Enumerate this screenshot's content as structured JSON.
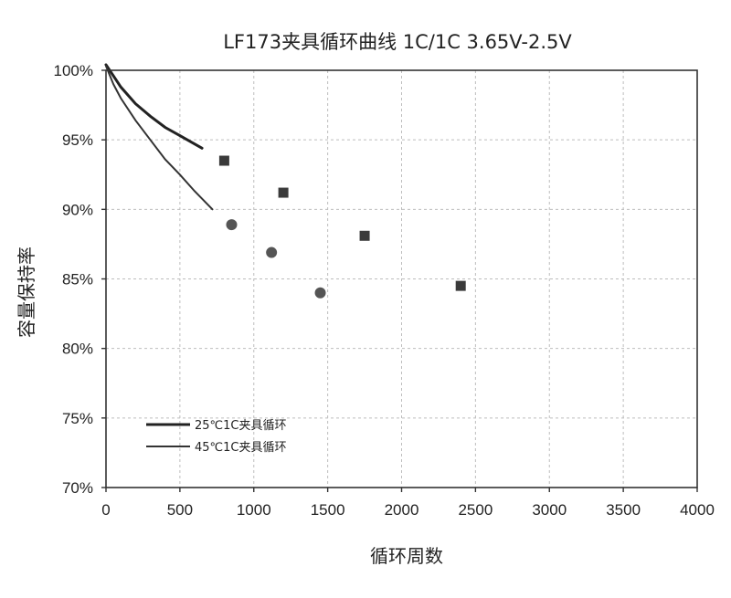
{
  "chart_data": {
    "type": "line",
    "title": "LF173夹具循环曲线 1C/1C 3.65V-2.5V",
    "xlabel": "循环周数",
    "ylabel": "容量保持率",
    "xlim": [
      0,
      4000
    ],
    "ylim": [
      70,
      100
    ],
    "x_ticks": [
      "0",
      "500",
      "1000",
      "1500",
      "2000",
      "2500",
      "3000",
      "3500",
      "4000"
    ],
    "y_ticks": [
      "70%",
      "75%",
      "80%",
      "85%",
      "90%",
      "95%",
      "100%"
    ],
    "grid": true,
    "legend_position": "lower-left",
    "series": [
      {
        "name": "25℃1C夹具循环",
        "color": "#222222",
        "line_width": 3,
        "marker": "square",
        "line": [
          [
            0,
            100.4
          ],
          [
            50,
            99.6
          ],
          [
            100,
            98.8
          ],
          [
            200,
            97.6
          ],
          [
            300,
            96.7
          ],
          [
            400,
            95.9
          ],
          [
            500,
            95.3
          ],
          [
            650,
            94.4
          ]
        ],
        "points": [
          [
            800,
            93.5
          ],
          [
            1200,
            91.2
          ],
          [
            1750,
            88.1
          ],
          [
            2400,
            84.5
          ]
        ]
      },
      {
        "name": "45℃1C夹具循环",
        "color": "#333333",
        "line_width": 2,
        "marker": "circle",
        "line": [
          [
            0,
            100.3
          ],
          [
            50,
            99.0
          ],
          [
            100,
            98.0
          ],
          [
            200,
            96.4
          ],
          [
            300,
            95.0
          ],
          [
            400,
            93.6
          ],
          [
            500,
            92.5
          ],
          [
            600,
            91.3
          ],
          [
            720,
            90.0
          ]
        ],
        "points": [
          [
            850,
            88.9
          ],
          [
            1120,
            86.9
          ],
          [
            1450,
            84.0
          ]
        ]
      }
    ]
  }
}
